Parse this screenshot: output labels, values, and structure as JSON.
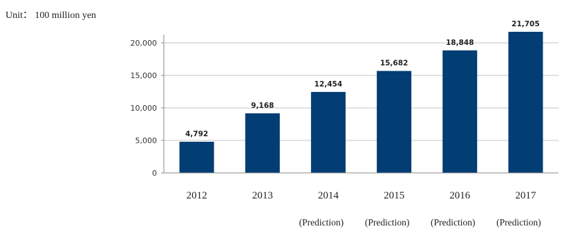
{
  "unit_label": "Unit： 100 million yen",
  "colors": {
    "bar": "#023d74",
    "grid": "#c4c4c4",
    "axis": "#8a8a8a"
  },
  "chart_data": {
    "type": "bar",
    "title": "",
    "xlabel": "",
    "ylabel": "",
    "ylim": [
      0,
      20000
    ],
    "yticks": [
      0,
      5000,
      10000,
      15000,
      20000
    ],
    "ytick_labels": [
      "0",
      "5,000",
      "10,000",
      "15,000",
      "20,000"
    ],
    "grid": true,
    "categories": [
      "2012",
      "2013",
      "2014",
      "2015",
      "2016",
      "2017"
    ],
    "category_notes": [
      "",
      "",
      "(Prediction)",
      "(Prediction)",
      "(Prediction)",
      "(Prediction)"
    ],
    "values": [
      4792,
      9168,
      12454,
      15682,
      18848,
      21705
    ],
    "value_labels": [
      "4,792",
      "9,168",
      "12,454",
      "15,682",
      "18,848",
      "21,705"
    ]
  }
}
